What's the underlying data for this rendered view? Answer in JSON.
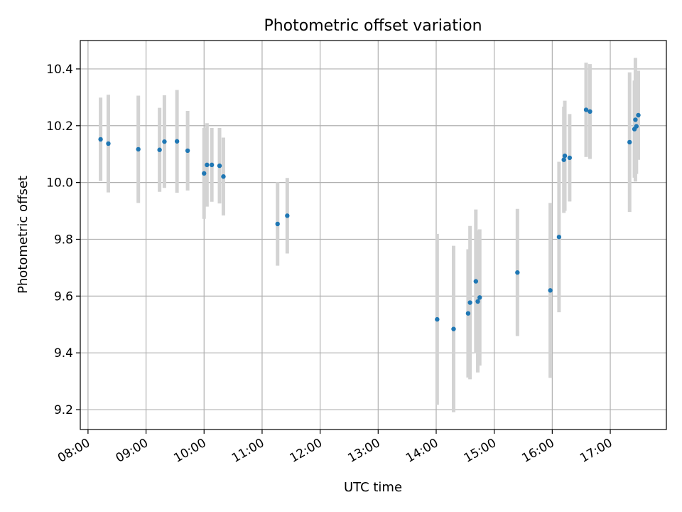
{
  "chart_data": {
    "type": "scatter",
    "title": "Photometric offset variation",
    "xlabel": "UTC time",
    "ylabel": "Photometric offset",
    "x_is_time": true,
    "xlim": [
      "07:52",
      "17:58"
    ],
    "ylim": [
      9.13,
      10.5
    ],
    "x_ticks": [
      "08:00",
      "09:00",
      "10:00",
      "11:00",
      "12:00",
      "13:00",
      "14:00",
      "15:00",
      "16:00",
      "17:00"
    ],
    "y_ticks": [
      9.2,
      9.4,
      9.6,
      9.8,
      10.0,
      10.2,
      10.4
    ],
    "grid": true,
    "colors": {
      "point": "#1f77b4",
      "errorbar": "#d3d3d3",
      "grid": "#b0b0b0"
    },
    "points": [
      {
        "x": "08:13",
        "y": 10.152,
        "yerr": 0.147
      },
      {
        "x": "08:21",
        "y": 10.137,
        "yerr": 0.172
      },
      {
        "x": "08:52",
        "y": 10.117,
        "yerr": 0.189
      },
      {
        "x": "09:14",
        "y": 10.115,
        "yerr": 0.148
      },
      {
        "x": "09:19",
        "y": 10.144,
        "yerr": 0.163
      },
      {
        "x": "09:32",
        "y": 10.145,
        "yerr": 0.181
      },
      {
        "x": "09:43",
        "y": 10.112,
        "yerr": 0.14
      },
      {
        "x": "10:00",
        "y": 10.032,
        "yerr": 0.16
      },
      {
        "x": "10:03",
        "y": 10.062,
        "yerr": 0.147
      },
      {
        "x": "10:08",
        "y": 10.062,
        "yerr": 0.13
      },
      {
        "x": "10:16",
        "y": 10.059,
        "yerr": 0.133
      },
      {
        "x": "10:20",
        "y": 10.021,
        "yerr": 0.137
      },
      {
        "x": "11:16",
        "y": 9.854,
        "yerr": 0.147
      },
      {
        "x": "11:26",
        "y": 9.883,
        "yerr": 0.133
      },
      {
        "x": "14:01",
        "y": 9.518,
        "yerr": 0.301
      },
      {
        "x": "14:18",
        "y": 9.484,
        "yerr": 0.293
      },
      {
        "x": "14:33",
        "y": 9.539,
        "yerr": 0.226
      },
      {
        "x": "14:35",
        "y": 9.577,
        "yerr": 0.27
      },
      {
        "x": "14:41",
        "y": 9.652,
        "yerr": 0.253
      },
      {
        "x": "14:43",
        "y": 9.581,
        "yerr": 0.25
      },
      {
        "x": "14:45",
        "y": 9.595,
        "yerr": 0.24
      },
      {
        "x": "15:24",
        "y": 9.683,
        "yerr": 0.224
      },
      {
        "x": "15:58",
        "y": 9.62,
        "yerr": 0.308
      },
      {
        "x": "16:07",
        "y": 9.808,
        "yerr": 0.265
      },
      {
        "x": "16:12",
        "y": 10.08,
        "yerr": 0.187
      },
      {
        "x": "16:13",
        "y": 10.094,
        "yerr": 0.194
      },
      {
        "x": "16:18",
        "y": 10.087,
        "yerr": 0.154
      },
      {
        "x": "16:35",
        "y": 10.256,
        "yerr": 0.166
      },
      {
        "x": "16:39",
        "y": 10.25,
        "yerr": 0.167
      },
      {
        "x": "17:20",
        "y": 10.142,
        "yerr": 0.246
      },
      {
        "x": "17:25",
        "y": 10.188,
        "yerr": 0.171
      },
      {
        "x": "17:26",
        "y": 10.221,
        "yerr": 0.218
      },
      {
        "x": "17:27",
        "y": 10.198,
        "yerr": 0.168
      },
      {
        "x": "17:29",
        "y": 10.237,
        "yerr": 0.157
      }
    ]
  }
}
